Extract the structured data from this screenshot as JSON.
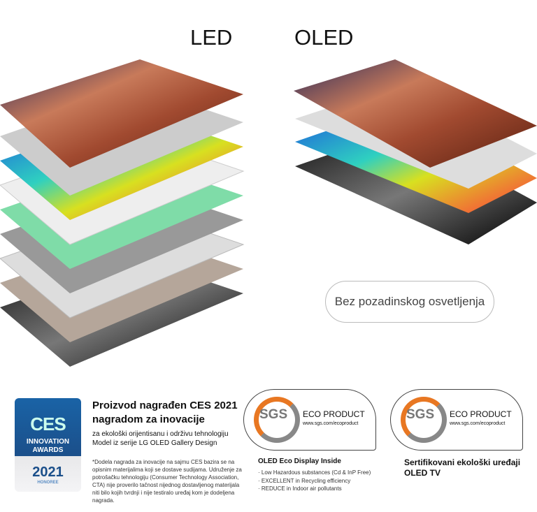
{
  "headings": {
    "led": "LED",
    "oled": "OLED"
  },
  "pill_label": "Bez pozadinskog osvetljenja",
  "ces_badge": {
    "logo": "CES",
    "line1": "INNOVATION",
    "line2": "AWARDS",
    "year": "2021",
    "honoree": "HONOREE"
  },
  "ces_text": {
    "title": "Proizvod nagrađen CES 2021 nagradom za inovacije",
    "line1": "za ekološki orijentisanu i održivu tehnologiju",
    "line2": "Model iz serije LG OLED Gallery Design",
    "footnote": "*Dodela nagrada za inovacije na sajmu CES bazira se na opisnim materijalima koji se dostave sudijama. Udruženje za potrošačku tehnologiju (Consumer Technology Association, CTA) nije proverilo tačnost nijednog dostavljenog materijala niti bilo kojih tvrdnji i nije testiralo uređaj kom je dodeljena nagrada."
  },
  "sgs1": {
    "logo": "SGS",
    "title": "ECO PRODUCT",
    "url": "www.sgs.com/ecoproduct",
    "caption": "OLED Eco Display Inside",
    "points": [
      "· Low Hazardous substances (Cd & InP Free)",
      "· EXCELLENT in Recycling efficiency",
      "· REDUCE in Indoor air pollutants"
    ]
  },
  "sgs2": {
    "logo": "SGS",
    "title": "ECO PRODUCT",
    "url": "www.sgs.com/ecoproduct",
    "caption1": "Sertifikovani ekološki uređaji",
    "caption2": "OLED TV"
  }
}
